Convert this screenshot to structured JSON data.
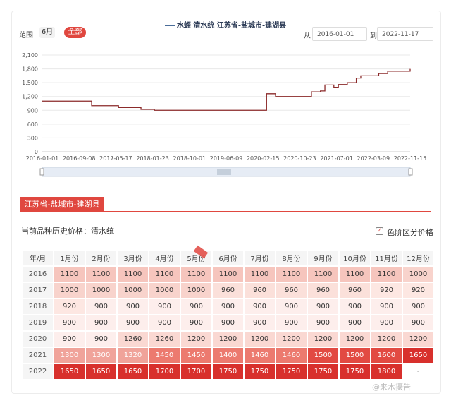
{
  "legend": "水蛭 清水统 江苏省-盐城市-建湖县",
  "controls": {
    "range_label": "范围",
    "btn_6m": "6月",
    "btn_all": "全部",
    "from_label": "从",
    "from_date": "2016-01-01",
    "to_label": "到",
    "to_date": "2022-11-17"
  },
  "region_tab": "江苏省-盐城市-建湖县",
  "history_label": "当前品种历史价格：清水统",
  "checkbox_label": "色阶区分价格",
  "watermark": "@来木摄告",
  "colors": {
    "accent": "#e0473f",
    "line": "#8b2a2a"
  },
  "chart_data": {
    "type": "line",
    "title": "",
    "ylim": [
      0,
      2100
    ],
    "yticks": [
      "0",
      "300",
      "600",
      "900",
      "1,200",
      "1,500",
      "1,800",
      "2,100"
    ],
    "xticks": [
      "2016-01-01",
      "2016-09-08",
      "2017-05-17",
      "2018-01-23",
      "2018-10-01",
      "2019-06-09",
      "2020-02-15",
      "2020-10-23",
      "2021-07-01",
      "2022-03-09",
      "2022-11-15"
    ],
    "series": [
      {
        "x": [
          "2016-01",
          "2016-02",
          "2016-03",
          "2016-04",
          "2016-05",
          "2016-06",
          "2016-07",
          "2016-08",
          "2016-09",
          "2016-10",
          "2016-11",
          "2016-12",
          "2017-01",
          "2017-02",
          "2017-03",
          "2017-04",
          "2017-05",
          "2017-06",
          "2017-07",
          "2017-08",
          "2017-09",
          "2017-10",
          "2017-11",
          "2017-12",
          "2018-01",
          "2018-02",
          "2018-03",
          "2018-04",
          "2018-05",
          "2018-06",
          "2018-07",
          "2018-08",
          "2018-09",
          "2018-10",
          "2018-11",
          "2018-12",
          "2019-01",
          "2019-02",
          "2019-03",
          "2019-04",
          "2019-05",
          "2019-06",
          "2019-07",
          "2019-08",
          "2019-09",
          "2019-10",
          "2019-11",
          "2019-12",
          "2020-01",
          "2020-02",
          "2020-03",
          "2020-04",
          "2020-05",
          "2020-06",
          "2020-07",
          "2020-08",
          "2020-09",
          "2020-10",
          "2020-11",
          "2020-12",
          "2021-01",
          "2021-02",
          "2021-03",
          "2021-04",
          "2021-05",
          "2021-06",
          "2021-07",
          "2021-08",
          "2021-09",
          "2021-10",
          "2021-11",
          "2021-12",
          "2022-01",
          "2022-02",
          "2022-03",
          "2022-04",
          "2022-05",
          "2022-06",
          "2022-07",
          "2022-08",
          "2022-09",
          "2022-10",
          "2022-11"
        ],
        "values": [
          1100,
          1100,
          1100,
          1100,
          1100,
          1100,
          1100,
          1100,
          1100,
          1100,
          1100,
          1000,
          1000,
          1000,
          1000,
          1000,
          1000,
          960,
          960,
          960,
          960,
          960,
          920,
          920,
          920,
          900,
          900,
          900,
          900,
          900,
          900,
          900,
          900,
          900,
          900,
          900,
          900,
          900,
          900,
          900,
          900,
          900,
          900,
          900,
          900,
          900,
          900,
          900,
          900,
          900,
          1260,
          1260,
          1200,
          1200,
          1200,
          1200,
          1200,
          1200,
          1200,
          1200,
          1300,
          1300,
          1320,
          1450,
          1450,
          1400,
          1460,
          1460,
          1500,
          1500,
          1600,
          1650,
          1650,
          1650,
          1650,
          1700,
          1700,
          1750,
          1750,
          1750,
          1750,
          1750,
          1800
        ]
      }
    ],
    "table": {
      "header": [
        "年/月",
        "1月份",
        "2月份",
        "3月份",
        "4月份",
        "5月份",
        "6月份",
        "7月份",
        "8月份",
        "9月份",
        "10月份",
        "11月份",
        "12月份"
      ],
      "rows": [
        {
          "year": "2016",
          "cells": [
            "1100",
            "1100",
            "1100",
            "1100",
            "1100",
            "1100",
            "1100",
            "1100",
            "1100",
            "1100",
            "1100",
            "1000"
          ]
        },
        {
          "year": "2017",
          "cells": [
            "1000",
            "1000",
            "1000",
            "1000",
            "1000",
            "960",
            "960",
            "960",
            "960",
            "960",
            "920",
            "920"
          ]
        },
        {
          "year": "2018",
          "cells": [
            "920",
            "900",
            "900",
            "900",
            "900",
            "900",
            "900",
            "900",
            "900",
            "900",
            "900",
            "900"
          ]
        },
        {
          "year": "2019",
          "cells": [
            "900",
            "900",
            "900",
            "900",
            "900",
            "900",
            "900",
            "900",
            "900",
            "900",
            "900",
            "900"
          ]
        },
        {
          "year": "2020",
          "cells": [
            "900",
            "900",
            "1260",
            "1260",
            "1200",
            "1200",
            "1200",
            "1200",
            "1200",
            "1200",
            "1200",
            "1200"
          ]
        },
        {
          "year": "2021",
          "cells": [
            "1300",
            "1300",
            "1320",
            "1450",
            "1450",
            "1400",
            "1460",
            "1460",
            "1500",
            "1500",
            "1600",
            "1650"
          ]
        },
        {
          "year": "2022",
          "cells": [
            "1650",
            "1650",
            "1650",
            "1700",
            "1700",
            "1750",
            "1750",
            "1750",
            "1750",
            "1750",
            "1800",
            "-"
          ]
        }
      ]
    }
  }
}
